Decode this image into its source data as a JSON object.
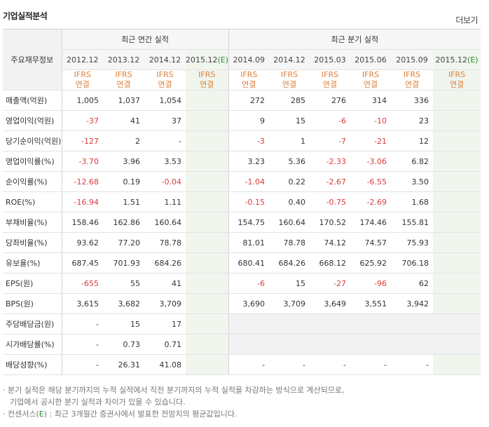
{
  "header": {
    "title": "기업실적분석",
    "more_label": "더보기"
  },
  "side_header": "주요재무정보",
  "annual_group": "최근 연간 실적",
  "quarter_group": "최근 분기 실적",
  "annual_dates": [
    "2012.12",
    "2013.12",
    "2014.12"
  ],
  "annual_est_date": {
    "base": "2015.12",
    "mark": "(E)"
  },
  "quarter_dates": [
    "2014.09",
    "2014.12",
    "2015.03",
    "2015.06",
    "2015.09"
  ],
  "quarter_est_date": {
    "base": "2015.12",
    "mark": "(E)"
  },
  "ifrs": {
    "line1": "IFRS",
    "line2": "연결"
  },
  "rows": [
    {
      "label": "매출액(억원)",
      "annual": [
        "1,005",
        "1,037",
        "1,054"
      ],
      "quarter": [
        "272",
        "285",
        "276",
        "314",
        "336"
      ]
    },
    {
      "label": "영업이익(억원)",
      "annual": [
        "-37",
        "41",
        "37"
      ],
      "quarter": [
        "9",
        "15",
        "-6",
        "-10",
        "23"
      ]
    },
    {
      "label": "당기순이익(억원)",
      "annual": [
        "-127",
        "2",
        "-"
      ],
      "quarter": [
        "-3",
        "1",
        "-7",
        "-21",
        "12"
      ]
    },
    {
      "label": "영업이익률(%)",
      "annual": [
        "-3.70",
        "3.96",
        "3.53"
      ],
      "quarter": [
        "3.23",
        "5.36",
        "-2.33",
        "-3.06",
        "6.82"
      ]
    },
    {
      "label": "순이익률(%)",
      "annual": [
        "-12.68",
        "0.19",
        "-0.04"
      ],
      "quarter": [
        "-1.04",
        "0.22",
        "-2.67",
        "-6.55",
        "3.50"
      ]
    },
    {
      "label": "ROE(%)",
      "annual": [
        "-16.94",
        "1.51",
        "1.11"
      ],
      "quarter": [
        "-0.15",
        "0.40",
        "-0.75",
        "-2.69",
        "1.68"
      ]
    },
    {
      "label": "부채비율(%)",
      "annual": [
        "158.46",
        "162.86",
        "160.64"
      ],
      "quarter": [
        "154.75",
        "160.64",
        "170.52",
        "174.46",
        "155.81"
      ]
    },
    {
      "label": "당좌비율(%)",
      "annual": [
        "93.62",
        "77.20",
        "78.78"
      ],
      "quarter": [
        "81.01",
        "78.78",
        "74.12",
        "74.57",
        "75.93"
      ]
    },
    {
      "label": "유보율(%)",
      "annual": [
        "687.45",
        "701.93",
        "684.26"
      ],
      "quarter": [
        "680.41",
        "684.26",
        "668.12",
        "625.92",
        "706.18"
      ]
    },
    {
      "label": "EPS(원)",
      "annual": [
        "-655",
        "55",
        "41"
      ],
      "quarter": [
        "-6",
        "15",
        "-27",
        "-96",
        "62"
      ]
    },
    {
      "label": "BPS(원)",
      "annual": [
        "3,615",
        "3,682",
        "3,709"
      ],
      "quarter": [
        "3,690",
        "3,709",
        "3,649",
        "3,551",
        "3,942"
      ]
    },
    {
      "label": "주당배당금(원)",
      "annual": [
        "-",
        "15",
        "17"
      ],
      "quarter": null
    },
    {
      "label": "시가배당률(%)",
      "annual": [
        "-",
        "0.73",
        "0.71"
      ],
      "quarter": null
    },
    {
      "label": "배당성향(%)",
      "annual": [
        "-",
        "26.31",
        "41.08"
      ],
      "quarter": [
        "-",
        "-",
        "-",
        "-",
        "-"
      ]
    }
  ],
  "notes": {
    "n1_line1": "· 분기 실적은 해당 분기까지의 누적 실적에서 직전 분기까지의 누적 실적을 차감하는 방식으로 계산되므로,",
    "n1_line2": "기업에서 공시한 분기 실적과 차이가 있을 수 있습니다.",
    "n2_pre": "· 컨센서스(",
    "n2_mark": "E",
    "n2_post": ") : 최근 3개월간 증권사에서 발표한 전망치의 평균값입니다."
  },
  "colors": {
    "negative": "#d93b3b",
    "ifrs": "#e0803b",
    "estimate_bg": "#f0f6ee",
    "estimate_mark": "#2c8a2c"
  }
}
